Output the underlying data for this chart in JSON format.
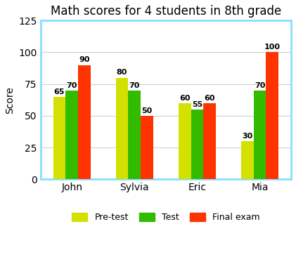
{
  "title": "Math scores for 4 students in 8th grade",
  "students": [
    "John",
    "Sylvia",
    "Eric",
    "Mia"
  ],
  "series": {
    "Pre-test": [
      65,
      80,
      60,
      30
    ],
    "Test": [
      70,
      70,
      55,
      70
    ],
    "Final exam": [
      90,
      50,
      60,
      100
    ]
  },
  "colors": {
    "Pre-test": "#d4e100",
    "Test": "#33bb00",
    "Final exam": "#ff3300"
  },
  "ylabel": "Score",
  "ylim": [
    0,
    125
  ],
  "yticks": [
    0,
    25,
    50,
    75,
    100,
    125
  ],
  "background_color": "#ffffff",
  "spine_color": "#88ddff",
  "grid_color": "#cccccc",
  "bar_width": 0.2,
  "title_fontsize": 12,
  "ylabel_fontsize": 10,
  "tick_fontsize": 10,
  "value_fontsize": 8,
  "legend_fontsize": 9
}
